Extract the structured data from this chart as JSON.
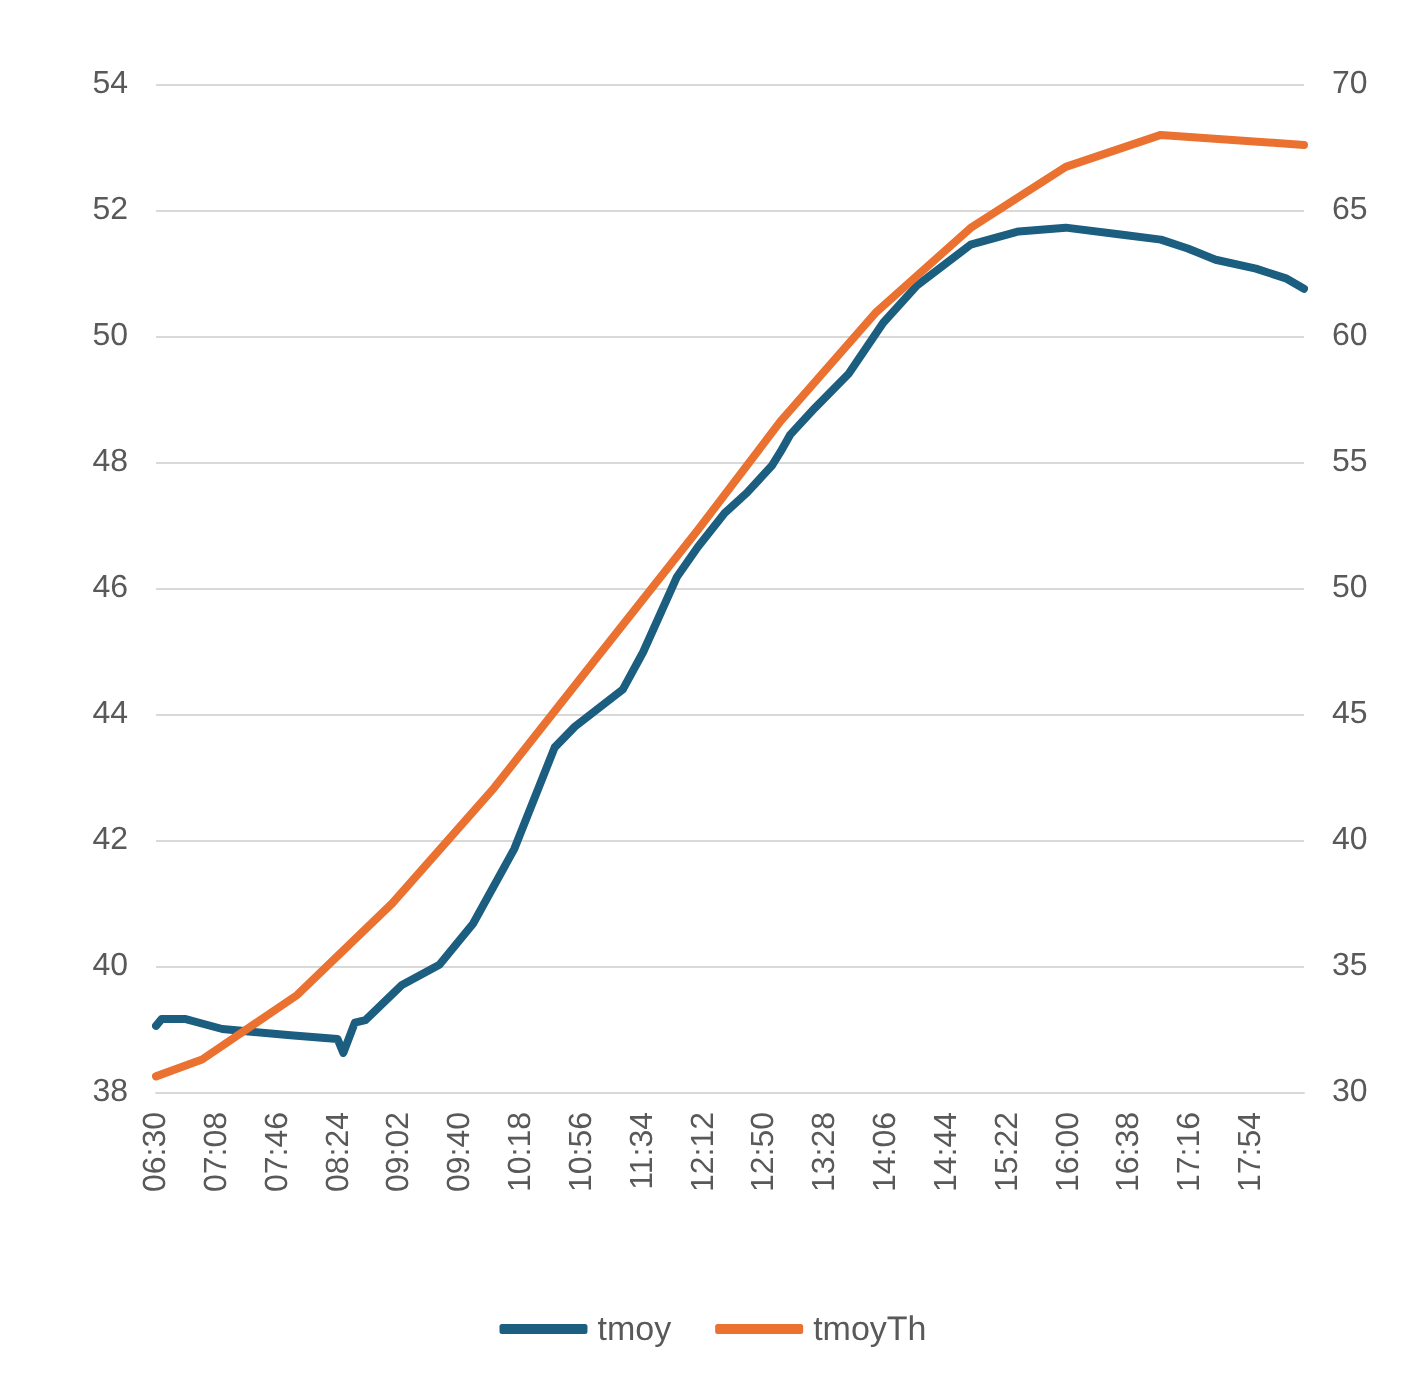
{
  "chart_data": {
    "type": "line",
    "xlim": [
      6.5,
      18.45
    ],
    "xticks": [
      {
        "value": 6.5,
        "label": "06:30"
      },
      {
        "value": 7.1333,
        "label": "07:08"
      },
      {
        "value": 7.7667,
        "label": "07:46"
      },
      {
        "value": 8.4,
        "label": "08:24"
      },
      {
        "value": 9.0333,
        "label": "09:02"
      },
      {
        "value": 9.6667,
        "label": "09:40"
      },
      {
        "value": 10.3,
        "label": "10:18"
      },
      {
        "value": 10.9333,
        "label": "10:56"
      },
      {
        "value": 11.5667,
        "label": "11:34"
      },
      {
        "value": 12.2,
        "label": "12:12"
      },
      {
        "value": 12.8333,
        "label": "12:50"
      },
      {
        "value": 13.4667,
        "label": "13:28"
      },
      {
        "value": 14.1,
        "label": "14:06"
      },
      {
        "value": 14.7333,
        "label": "14:44"
      },
      {
        "value": 15.3667,
        "label": "15:22"
      },
      {
        "value": 16.0,
        "label": "16:00"
      },
      {
        "value": 16.6333,
        "label": "16:38"
      },
      {
        "value": 17.2667,
        "label": "17:16"
      },
      {
        "value": 17.9,
        "label": "17:54"
      }
    ],
    "ylim": [
      38,
      54
    ],
    "yticks": [
      38,
      40,
      42,
      44,
      46,
      48,
      50,
      52,
      54
    ],
    "y2lim": [
      30,
      70
    ],
    "y2ticks": [
      30,
      35,
      40,
      45,
      50,
      55,
      60,
      65,
      70
    ],
    "grid": "y",
    "legend": "bottom",
    "marker": "none",
    "line_style": "solid",
    "series": [
      {
        "name": "tmoy",
        "color": "#1b5e80",
        "x": [
          6.5,
          6.56,
          6.8,
          7.19,
          7.9,
          8.39,
          8.45,
          8.57,
          8.68,
          9.06,
          9.45,
          9.8,
          10.23,
          10.65,
          10.86,
          11.36,
          11.57,
          11.92,
          12.14,
          12.42,
          12.65,
          12.91,
          13.0,
          13.1,
          13.36,
          13.71,
          14.07,
          14.42,
          14.98,
          15.48,
          15.97,
          16.54,
          16.96,
          17.24,
          17.53,
          17.95,
          18.27,
          18.45
        ],
        "values": [
          39.05,
          39.16,
          39.16,
          39.0,
          38.9,
          38.84,
          38.62,
          39.1,
          39.14,
          39.7,
          40.02,
          40.67,
          41.86,
          43.47,
          43.8,
          44.39,
          44.98,
          46.17,
          46.65,
          47.19,
          47.51,
          47.94,
          48.16,
          48.43,
          48.86,
          49.4,
          50.21,
          50.8,
          51.45,
          51.66,
          51.72,
          51.61,
          51.53,
          51.39,
          51.21,
          51.07,
          50.91,
          50.75
        ]
      },
      {
        "name": "tmoyTh",
        "color": "#ea7130",
        "axis": "y2",
        "x": [
          6.5,
          6.98,
          7.97,
          8.96,
          10.02,
          11.08,
          12.14,
          13.0,
          13.99,
          14.98,
          15.97,
          16.96,
          18.45
        ],
        "values": [
          30.62,
          31.29,
          33.85,
          37.49,
          42.07,
          47.19,
          52.3,
          56.61,
          60.92,
          64.29,
          66.71,
          67.98,
          67.58
        ]
      }
    ]
  }
}
